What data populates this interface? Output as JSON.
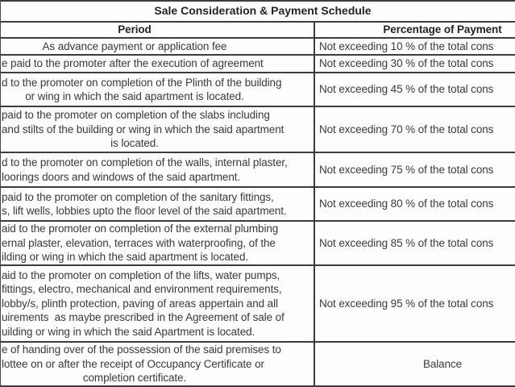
{
  "table": {
    "title": "Sale Consideration & Payment Schedule",
    "headers": {
      "period": "Period",
      "percentage": "Percentage of Payment"
    },
    "rows": [
      {
        "period_lines": [
          {
            "t": "As advance payment or application fee",
            "cut": false
          }
        ],
        "percentage": {
          "t": "Not exceeding 10 % of the total cons",
          "cut": true
        }
      },
      {
        "period_lines": [
          {
            "t": "e paid to the promoter after the execution of agreement",
            "cut": true
          }
        ],
        "percentage": {
          "t": "Not exceeding 30 % of the total cons",
          "cut": true
        }
      },
      {
        "period_lines": [
          {
            "t": "d to the promoter on completion of the Plinth of the building",
            "cut": true
          },
          {
            "t": "or wing in which the said apartment is located.",
            "cut": false
          }
        ],
        "percentage": {
          "t": "Not exceeding 45 % of the total cons",
          "cut": true
        }
      },
      {
        "period_lines": [
          {
            "t": "paid to the promoter on completion of the slabs including",
            "cut": true
          },
          {
            "t": "and stilts of the building or wing in which the said apartment",
            "cut": true
          },
          {
            "t": "is located.",
            "cut": false
          }
        ],
        "percentage": {
          "t": "Not exceeding 70 % of the total cons",
          "cut": true
        }
      },
      {
        "period_lines": [
          {
            "t": "d to the promoter on completion of the walls, internal plaster,",
            "cut": true
          },
          {
            "t": "loorings doors and windows of the said apartment.",
            "cut": true
          }
        ],
        "percentage": {
          "t": "Not exceeding 75 % of the total cons",
          "cut": true
        }
      },
      {
        "period_lines": [
          {
            "t": "paid to the promoter on completion of the sanitary fittings,",
            "cut": true
          },
          {
            "t": "s, lift wells, lobbies upto the floor level of the said apartment.",
            "cut": true
          }
        ],
        "percentage": {
          "t": "Not exceeding 80 % of the total cons",
          "cut": true
        }
      },
      {
        "period_lines": [
          {
            "t": "aid to the promoter on completion of the external plumbing",
            "cut": true
          },
          {
            "t": "ernal plaster, elevation, terraces with waterproofing, of the",
            "cut": true
          },
          {
            "t": "ilding or wing in which the said apartment is located.",
            "cut": true
          }
        ],
        "percentage": {
          "t": "Not exceeding 85 % of the total cons",
          "cut": true
        }
      },
      {
        "period_lines": [
          {
            "t": "aid to the promoter on completion of the lifts, water pumps,",
            "cut": true
          },
          {
            "t": "fittings, electro, mechanical and environment requirements,",
            "cut": true
          },
          {
            "t": "lobby/s, plinth protection, paving of areas appertain and all",
            "cut": true
          },
          {
            "t": "uirements  as maybe prescribed in the Agreement of sale of",
            "cut": true
          },
          {
            "t": "uilding or wing in which the said Apartment is located.",
            "cut": true
          }
        ],
        "percentage": {
          "t": "Not exceeding 95 % of the total cons",
          "cut": true
        }
      },
      {
        "period_lines": [
          {
            "t": "e of handing over of the possession of the said premises to",
            "cut": true
          },
          {
            "t": "lottee on or after the receipt of Occupancy Certificate or",
            "cut": true
          },
          {
            "t": "completion certificate.",
            "cut": false
          }
        ],
        "percentage": {
          "t": "Balance",
          "cut": false
        }
      }
    ]
  },
  "colors": {
    "border": "#3c3c3c",
    "text": "#3a3a3a",
    "heading": "#242424",
    "background": "#ffffff"
  }
}
